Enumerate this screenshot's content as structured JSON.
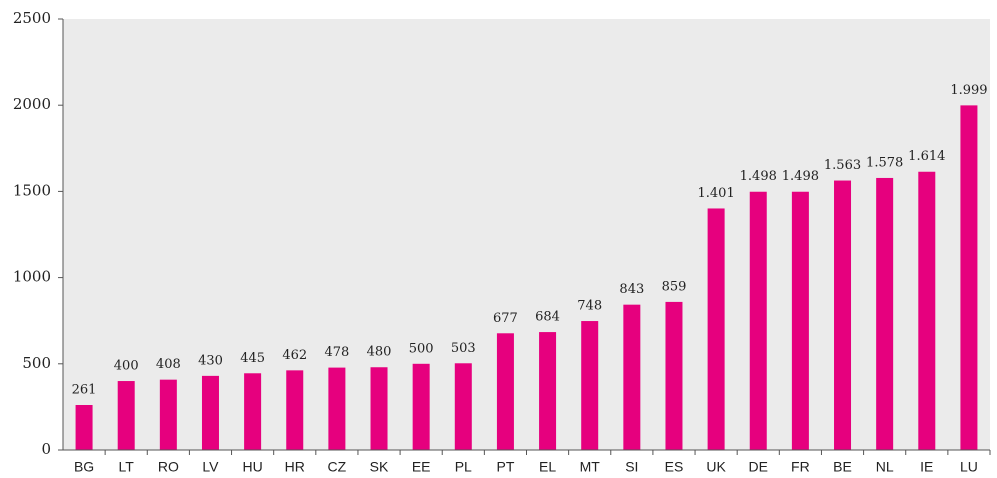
{
  "chart_data": {
    "type": "bar",
    "categories": [
      "BG",
      "LT",
      "RO",
      "LV",
      "HU",
      "HR",
      "CZ",
      "SK",
      "EE",
      "PL",
      "PT",
      "EL",
      "MT",
      "SI",
      "ES",
      "UK",
      "DE",
      "FR",
      "BE",
      "NL",
      "IE",
      "LU"
    ],
    "values": [
      261,
      400,
      408,
      430,
      445,
      462,
      478,
      480,
      500,
      503,
      677,
      684,
      748,
      843,
      859,
      1401,
      1498,
      1498,
      1563,
      1578,
      1614,
      1999
    ],
    "value_labels": [
      "261",
      "400",
      "408",
      "430",
      "445",
      "462",
      "478",
      "480",
      "500",
      "503",
      "677",
      "684",
      "748",
      "843",
      "859",
      "1.401",
      "1.498",
      "1.498",
      "1.563",
      "1.578",
      "1.614",
      "1.999"
    ],
    "color": "#e6007e",
    "ylim": [
      0,
      2500
    ],
    "yticks": [
      0,
      500,
      1000,
      1500,
      2000,
      2500
    ]
  }
}
